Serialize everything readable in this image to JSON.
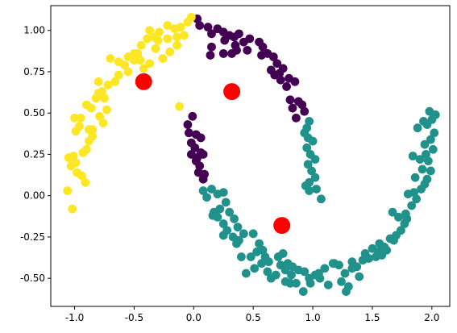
{
  "chart_data": {
    "type": "scatter",
    "title": "",
    "xlabel": "",
    "ylabel": "",
    "xlim": [
      -1.2,
      2.15
    ],
    "ylim": [
      -0.67,
      1.15
    ],
    "grid": false,
    "x_ticks": [
      "-1.0",
      "-0.5",
      "0.0",
      "0.5",
      "1.0",
      "1.5",
      "2.0"
    ],
    "y_ticks": [
      "-0.50",
      "-0.25",
      "0.00",
      "0.25",
      "0.50",
      "0.75",
      "1.00"
    ],
    "x_tick_values": [
      -1.0,
      -0.5,
      0.0,
      0.5,
      1.0,
      1.5,
      2.0
    ],
    "y_tick_values": [
      -0.5,
      -0.25,
      0.0,
      0.25,
      0.5,
      0.75,
      1.0
    ],
    "cluster_colors": [
      "#440154",
      "#21918c",
      "#fde725"
    ],
    "centroid_color": "#ff0000",
    "series": [
      {
        "cluster": 0,
        "color": "#440154",
        "points": [
          [
            0.03,
            1.07
          ],
          [
            0.05,
            1.03
          ],
          [
            0.12,
            1.02
          ],
          [
            0.15,
            0.98
          ],
          [
            0.2,
            1.01
          ],
          [
            0.25,
            0.99
          ],
          [
            0.3,
            0.97
          ],
          [
            0.26,
            0.94
          ],
          [
            0.34,
            0.96
          ],
          [
            0.38,
            0.98
          ],
          [
            0.35,
            0.91
          ],
          [
            0.42,
            0.93
          ],
          [
            0.47,
            0.95
          ],
          [
            0.45,
            0.88
          ],
          [
            0.55,
            0.93
          ],
          [
            0.58,
            0.9
          ],
          [
            0.62,
            0.86
          ],
          [
            0.57,
            0.85
          ],
          [
            0.67,
            0.84
          ],
          [
            0.7,
            0.8
          ],
          [
            0.65,
            0.76
          ],
          [
            0.72,
            0.74
          ],
          [
            0.75,
            0.77
          ],
          [
            0.68,
            0.73
          ],
          [
            0.73,
            0.7
          ],
          [
            0.8,
            0.71
          ],
          [
            0.78,
            0.66
          ],
          [
            0.85,
            0.69
          ],
          [
            0.81,
            0.58
          ],
          [
            0.88,
            0.57
          ],
          [
            0.91,
            0.55
          ],
          [
            0.83,
            0.53
          ],
          [
            0.93,
            0.51
          ],
          [
            0.86,
            0.47
          ],
          [
            0.15,
            0.9
          ],
          [
            0.25,
            0.86
          ],
          [
            0.14,
            0.85
          ],
          [
            0.32,
            0.86
          ],
          [
            0.36,
            0.88
          ],
          [
            -0.05,
            0.43
          ],
          [
            -0.01,
            0.48
          ],
          [
            -0.04,
            0.38
          ],
          [
            -0.02,
            0.32
          ],
          [
            0.02,
            0.37
          ],
          [
            0.06,
            0.35
          ],
          [
            0.01,
            0.29
          ],
          [
            -0.02,
            0.25
          ],
          [
            0.03,
            0.23
          ],
          [
            0.05,
            0.18
          ],
          [
            0.08,
            0.25
          ],
          [
            0.02,
            0.21
          ],
          [
            0.06,
            0.26
          ],
          [
            0.09,
            0.13
          ],
          [
            0.08,
            0.1
          ],
          [
            0.04,
            0.14
          ]
        ]
      },
      {
        "cluster": 1,
        "color": "#21918c",
        "points": [
          [
            0.95,
            0.41
          ],
          [
            0.97,
            0.45
          ],
          [
            0.93,
            0.38
          ],
          [
            0.96,
            0.35
          ],
          [
            1.0,
            0.33
          ],
          [
            0.95,
            0.29
          ],
          [
            0.98,
            0.25
          ],
          [
            1.02,
            0.22
          ],
          [
            0.96,
            0.19
          ],
          [
            0.99,
            0.15
          ],
          [
            1.02,
            0.11
          ],
          [
            0.97,
            0.08
          ],
          [
            0.94,
            0.06
          ],
          [
            0.97,
            0.03
          ],
          [
            1.03,
            0.04
          ],
          [
            1.07,
            -0.02
          ],
          [
            0.08,
            0.03
          ],
          [
            0.11,
            -0.01
          ],
          [
            0.15,
            0.04
          ],
          [
            0.2,
            0.01
          ],
          [
            0.25,
            0.02
          ],
          [
            0.27,
            -0.04
          ],
          [
            0.22,
            -0.08
          ],
          [
            0.17,
            -0.1
          ],
          [
            0.16,
            -0.12
          ],
          [
            0.2,
            -0.13
          ],
          [
            0.3,
            -0.1
          ],
          [
            0.34,
            -0.14
          ],
          [
            0.25,
            -0.17
          ],
          [
            0.28,
            -0.21
          ],
          [
            0.37,
            -0.19
          ],
          [
            0.42,
            -0.23
          ],
          [
            0.38,
            -0.27
          ],
          [
            0.33,
            -0.25
          ],
          [
            0.36,
            -0.29
          ],
          [
            0.25,
            -0.24
          ],
          [
            0.5,
            -0.23
          ],
          [
            0.55,
            -0.29
          ],
          [
            0.58,
            -0.33
          ],
          [
            0.53,
            -0.34
          ],
          [
            0.48,
            -0.37
          ],
          [
            0.4,
            -0.37
          ],
          [
            0.6,
            -0.37
          ],
          [
            0.63,
            -0.4
          ],
          [
            0.57,
            -0.41
          ],
          [
            0.51,
            -0.44
          ],
          [
            0.44,
            -0.47
          ],
          [
            0.62,
            -0.46
          ],
          [
            0.65,
            -0.5
          ],
          [
            0.69,
            -0.48
          ],
          [
            0.73,
            -0.42
          ],
          [
            0.71,
            -0.37
          ],
          [
            0.75,
            -0.35
          ],
          [
            0.79,
            -0.41
          ],
          [
            0.83,
            -0.43
          ],
          [
            0.88,
            -0.45
          ],
          [
            0.82,
            -0.48
          ],
          [
            0.77,
            -0.52
          ],
          [
            0.86,
            -0.53
          ],
          [
            0.93,
            -0.46
          ],
          [
            0.97,
            -0.5
          ],
          [
            1.02,
            -0.48
          ],
          [
            1.06,
            -0.5
          ],
          [
            1.05,
            -0.47
          ],
          [
            0.98,
            -0.53
          ],
          [
            1.1,
            -0.44
          ],
          [
            1.17,
            -0.41
          ],
          [
            1.22,
            -0.42
          ],
          [
            1.27,
            -0.47
          ],
          [
            1.24,
            -0.52
          ],
          [
            1.3,
            -0.55
          ],
          [
            1.18,
            -0.41
          ],
          [
            1.33,
            -0.4
          ],
          [
            1.37,
            -0.43
          ],
          [
            1.42,
            -0.39
          ],
          [
            1.44,
            -0.35
          ],
          [
            1.5,
            -0.32
          ],
          [
            1.55,
            -0.34
          ],
          [
            1.47,
            -0.38
          ],
          [
            1.53,
            -0.37
          ],
          [
            1.58,
            -0.36
          ],
          [
            1.62,
            -0.33
          ],
          [
            1.56,
            -0.29
          ],
          [
            1.65,
            -0.26
          ],
          [
            1.7,
            -0.24
          ],
          [
            1.68,
            -0.27
          ],
          [
            1.74,
            -0.21
          ],
          [
            1.77,
            -0.17
          ],
          [
            1.72,
            -0.13
          ],
          [
            1.78,
            -0.11
          ],
          [
            1.67,
            -0.1
          ],
          [
            1.83,
            -0.06
          ],
          [
            1.87,
            -0.02
          ],
          [
            1.8,
            0.01
          ],
          [
            1.85,
            0.02
          ],
          [
            1.91,
            0.04
          ],
          [
            1.94,
            0.07
          ],
          [
            1.86,
            0.11
          ],
          [
            1.96,
            0.1
          ],
          [
            1.99,
            0.15
          ],
          [
            1.92,
            0.16
          ],
          [
            1.97,
            0.21
          ],
          [
            1.9,
            0.22
          ],
          [
            1.95,
            0.25
          ],
          [
            2.01,
            0.28
          ],
          [
            1.94,
            0.31
          ],
          [
            1.99,
            0.34
          ],
          [
            2.02,
            0.38
          ],
          [
            1.96,
            0.43
          ],
          [
            2.0,
            0.46
          ],
          [
            2.03,
            0.49
          ],
          [
            1.98,
            0.51
          ],
          [
            1.93,
            0.45
          ],
          [
            1.88,
            0.41
          ],
          [
            0.77,
            -0.45
          ],
          [
            0.81,
            -0.53
          ],
          [
            0.92,
            -0.58
          ],
          [
            1.13,
            -0.54
          ],
          [
            1.28,
            -0.58
          ],
          [
            1.39,
            -0.49
          ],
          [
            1.33,
            -0.44
          ],
          [
            1.6,
            -0.31
          ],
          [
            1.79,
            -0.14
          ],
          [
            1.84,
            0.24
          ]
        ]
      },
      {
        "cluster": 2,
        "color": "#fde725",
        "points": [
          [
            -1.05,
            0.23
          ],
          [
            -1.01,
            0.24
          ],
          [
            -0.99,
            0.2
          ],
          [
            -1.03,
            0.18
          ],
          [
            -0.98,
            0.14
          ],
          [
            -0.94,
            0.12
          ],
          [
            -0.91,
            0.08
          ],
          [
            -1.06,
            0.03
          ],
          [
            -1.02,
            -0.08
          ],
          [
            -0.99,
            0.39
          ],
          [
            -0.96,
            0.42
          ],
          [
            -1.0,
            0.47
          ],
          [
            -0.95,
            0.47
          ],
          [
            -0.9,
            0.55
          ],
          [
            -0.86,
            0.53
          ],
          [
            -0.82,
            0.59
          ],
          [
            -0.77,
            0.63
          ],
          [
            -0.8,
            0.69
          ],
          [
            -0.72,
            0.67
          ],
          [
            -0.66,
            0.69
          ],
          [
            -0.63,
            0.73
          ],
          [
            -0.58,
            0.79
          ],
          [
            -0.55,
            0.84
          ],
          [
            -0.5,
            0.82
          ],
          [
            -0.47,
            0.86
          ],
          [
            -0.44,
            0.91
          ],
          [
            -0.39,
            0.95
          ],
          [
            -0.33,
            0.96
          ],
          [
            -0.29,
            0.99
          ],
          [
            -0.22,
            1.03
          ],
          [
            -0.16,
            1.01
          ],
          [
            -0.11,
            1.02
          ],
          [
            -0.05,
            1.05
          ],
          [
            -0.02,
            1.08
          ],
          [
            -0.08,
            0.97
          ],
          [
            -0.14,
            0.91
          ],
          [
            -0.2,
            0.87
          ],
          [
            -0.26,
            0.83
          ],
          [
            -0.32,
            0.89
          ],
          [
            -0.37,
            0.8
          ],
          [
            -0.42,
            0.77
          ],
          [
            -0.55,
            0.75
          ],
          [
            -0.63,
            0.81
          ],
          [
            -0.7,
            0.83
          ],
          [
            -0.75,
            0.59
          ],
          [
            -0.73,
            0.52
          ],
          [
            -0.79,
            0.48
          ],
          [
            -0.88,
            0.4
          ],
          [
            -0.85,
            0.36
          ],
          [
            -0.88,
            0.33
          ],
          [
            -0.9,
            0.28
          ],
          [
            -0.93,
            0.26
          ],
          [
            -0.85,
            0.4
          ],
          [
            -0.76,
            0.44
          ],
          [
            -0.8,
            0.62
          ],
          [
            -0.45,
            0.82
          ],
          [
            -0.3,
            0.94
          ],
          [
            -0.14,
            0.96
          ],
          [
            -0.22,
            0.95
          ],
          [
            -0.12,
            0.54
          ],
          [
            -0.5,
            0.86
          ],
          [
            -0.37,
            1.0
          ]
        ]
      }
    ],
    "centroids": [
      [
        0.32,
        0.63
      ],
      [
        0.74,
        -0.18
      ],
      [
        -0.42,
        0.69
      ]
    ]
  }
}
